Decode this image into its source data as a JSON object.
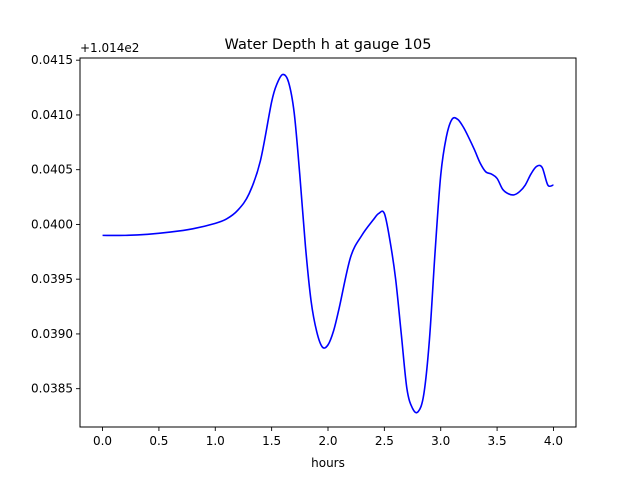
{
  "chart_data": {
    "type": "line",
    "title": "Water Depth h at gauge 105",
    "xlabel": "hours",
    "ylabel": "",
    "offset_label": "+1.014e2",
    "xlim": [
      -0.2,
      4.2
    ],
    "ylim": [
      0.03815,
      0.04152
    ],
    "grid": false,
    "xticks": [
      0.0,
      0.5,
      1.0,
      1.5,
      2.0,
      2.5,
      3.0,
      3.5,
      4.0
    ],
    "xtick_labels": [
      "0.0",
      "0.5",
      "1.0",
      "1.5",
      "2.0",
      "2.5",
      "3.0",
      "3.5",
      "4.0"
    ],
    "yticks": [
      0.0385,
      0.039,
      0.0395,
      0.04,
      0.0405,
      0.041,
      0.0415
    ],
    "ytick_labels": [
      "0.0385",
      "0.0390",
      "0.0395",
      "0.0400",
      "0.0405",
      "0.0410",
      "0.0415"
    ],
    "series": [
      {
        "color": "#0000ff",
        "x": [
          0.0,
          0.2,
          0.4,
          0.6,
          0.8,
          1.0,
          1.1,
          1.2,
          1.3,
          1.4,
          1.5,
          1.55,
          1.6,
          1.65,
          1.7,
          1.75,
          1.8,
          1.85,
          1.9,
          1.95,
          2.0,
          2.05,
          2.1,
          2.2,
          2.3,
          2.4,
          2.45,
          2.5,
          2.55,
          2.6,
          2.65,
          2.7,
          2.75,
          2.8,
          2.85,
          2.9,
          2.95,
          3.0,
          3.05,
          3.1,
          3.15,
          3.2,
          3.25,
          3.3,
          3.35,
          3.4,
          3.45,
          3.5,
          3.55,
          3.6,
          3.65,
          3.7,
          3.75,
          3.8,
          3.85,
          3.9,
          3.95,
          4.0
        ],
        "y": [
          0.0399,
          0.0399,
          0.03991,
          0.03993,
          0.03996,
          0.04001,
          0.04005,
          0.04013,
          0.04028,
          0.04058,
          0.04112,
          0.04129,
          0.04137,
          0.0413,
          0.04102,
          0.04045,
          0.0398,
          0.0393,
          0.03902,
          0.03888,
          0.0389,
          0.03903,
          0.03924,
          0.0397,
          0.0399,
          0.04004,
          0.0401,
          0.0401,
          0.03985,
          0.0395,
          0.039,
          0.0385,
          0.03832,
          0.03829,
          0.03845,
          0.03895,
          0.03975,
          0.04045,
          0.0408,
          0.04096,
          0.04096,
          0.04089,
          0.04079,
          0.04068,
          0.04056,
          0.04048,
          0.04046,
          0.04042,
          0.04032,
          0.04028,
          0.04027,
          0.0403,
          0.04036,
          0.04046,
          0.04053,
          0.04052,
          0.04036,
          0.04036
        ]
      }
    ]
  }
}
